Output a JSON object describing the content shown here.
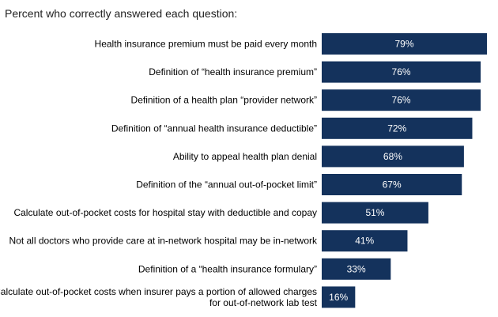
{
  "chart_data": {
    "type": "bar",
    "orientation": "horizontal",
    "title": "Percent who correctly answered each question:",
    "categories": [
      [
        "Health insurance premium must be paid every month"
      ],
      [
        "Definition of “health insurance premium”"
      ],
      [
        "Definition of a health plan “provider network”"
      ],
      [
        "Definition of “annual health insurance deductible”"
      ],
      [
        "Ability to appeal health plan denial"
      ],
      [
        "Definition of the “annual out-of-pocket limit”"
      ],
      [
        "Calculate out-of-pocket costs for hospital stay with deductible and copay"
      ],
      [
        "Not all doctors who provide care at in-network hospital may be in-network"
      ],
      [
        "Definition of a “health insurance formulary”"
      ],
      [
        "Calculate out-of-pocket costs when insurer pays a portion of allowed charges",
        "for out-of-network lab test"
      ]
    ],
    "values": [
      79,
      76,
      76,
      72,
      68,
      67,
      51,
      41,
      33,
      16
    ],
    "value_labels": [
      "79%",
      "76%",
      "76%",
      "72%",
      "68%",
      "67%",
      "51%",
      "41%",
      "33%",
      "16%"
    ],
    "bar_color": "#14325C",
    "xlim": [
      0,
      80
    ],
    "xlabel": "",
    "ylabel": "",
    "grid": false,
    "legend": "none"
  }
}
